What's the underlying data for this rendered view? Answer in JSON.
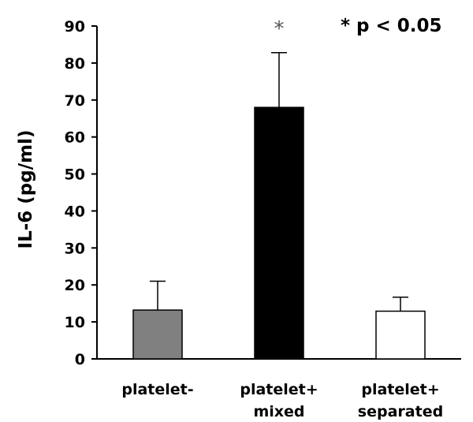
{
  "chart_data": {
    "type": "bar",
    "categories": [
      {
        "line1": "platelet-",
        "line2": ""
      },
      {
        "line1": "platelet+",
        "line2": "mixed"
      },
      {
        "line1": "platelet+",
        "line2": "separated"
      }
    ],
    "values": [
      13.2,
      68,
      12.9
    ],
    "errors": [
      7.8,
      14.8,
      3.8
    ],
    "bar_colors": [
      "#808080",
      "#000000",
      "#ffffff"
    ],
    "significance": [
      "",
      "*",
      ""
    ],
    "ylabel": "IL-6  (pg/ml)",
    "ylim": [
      0,
      90
    ],
    "yticks": [
      0,
      10,
      20,
      30,
      40,
      50,
      60,
      70,
      80,
      90
    ],
    "annotation": "* p < 0.05",
    "grid": false,
    "legend": "none"
  }
}
